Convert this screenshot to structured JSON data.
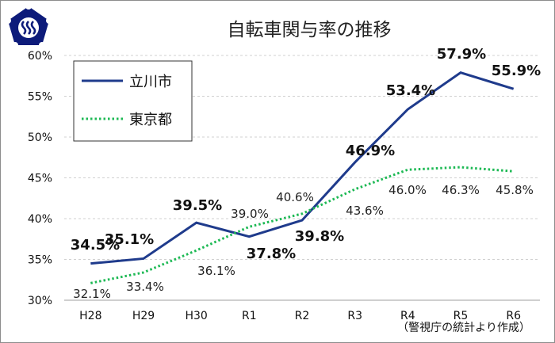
{
  "chart_data": {
    "type": "line",
    "title": "自転車関与率の推移",
    "categories": [
      "H28",
      "H29",
      "H30",
      "R1",
      "R2",
      "R3",
      "R4",
      "R5",
      "R6"
    ],
    "series": [
      {
        "name": "立川市",
        "values": [
          34.5,
          35.1,
          39.5,
          37.8,
          39.8,
          46.9,
          53.4,
          57.9,
          55.9
        ],
        "labels": [
          "34.5%",
          "35.1%",
          "39.5%",
          "37.8%",
          "39.8%",
          "46.9%",
          "53.4%",
          "57.9%",
          "55.9%"
        ],
        "color": "#1f3b8c",
        "style": "solid"
      },
      {
        "name": "東京都",
        "values": [
          32.1,
          33.4,
          36.1,
          39.0,
          40.6,
          43.6,
          46.0,
          46.3,
          45.8
        ],
        "labels": [
          "32.1%",
          "33.4%",
          "36.1%",
          "39.0%",
          "40.6%",
          "43.6%",
          "46.0%",
          "46.3%",
          "45.8%"
        ],
        "color": "#1db954",
        "style": "dotted"
      }
    ],
    "ylim": [
      30,
      60
    ],
    "yticks": [
      "30%",
      "35%",
      "40%",
      "45%",
      "50%",
      "55%",
      "60%"
    ],
    "grid": true,
    "legend": "top-left",
    "source_note": "（警視庁の統計より作成）"
  },
  "logo": {
    "color": "#0d1b7a"
  }
}
